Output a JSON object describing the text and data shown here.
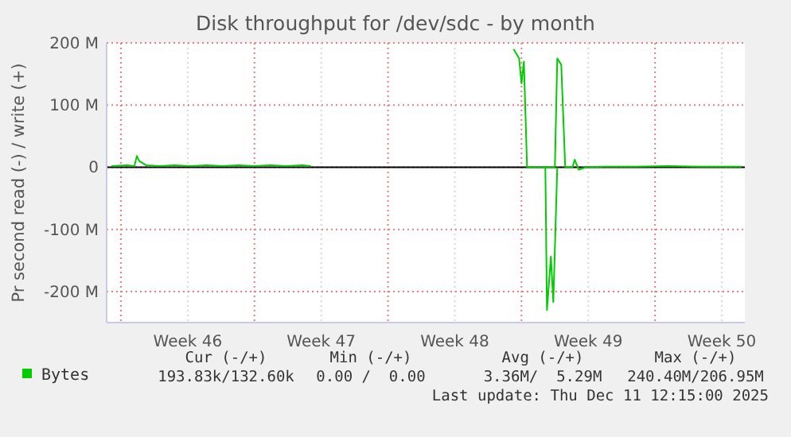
{
  "chart_data": {
    "type": "line",
    "title": "Disk throughput for /dev/sdc - by month",
    "ylabel": "Pr second read (-) / write (+)",
    "xlim": [
      "2025-11-09T06:00",
      "2025-12-12T17:00"
    ],
    "ylim": [
      -250,
      200
    ],
    "xticks": [
      {
        "value": "2025-11-10T00:00",
        "label": null
      },
      {
        "value": "2025-11-13T12:00",
        "label": "Week 46"
      },
      {
        "value": "2025-11-17T00:00",
        "label": null
      },
      {
        "value": "2025-11-20T12:00",
        "label": "Week 47"
      },
      {
        "value": "2025-11-24T00:00",
        "label": null
      },
      {
        "value": "2025-11-27T12:00",
        "label": "Week 48"
      },
      {
        "value": "2025-12-01T00:00",
        "label": null
      },
      {
        "value": "2025-12-04T12:00",
        "label": "Week 49"
      },
      {
        "value": "2025-12-08T00:00",
        "label": null
      },
      {
        "value": "2025-12-11T12:00",
        "label": "Week 50"
      }
    ],
    "yticks": [
      {
        "value": -200,
        "label": "-200 M"
      },
      {
        "value": -100,
        "label": "-100 M"
      },
      0,
      {
        "value": 100,
        "label": "100 M"
      },
      {
        "value": 200,
        "label": "200 M"
      }
    ],
    "grid": true,
    "legend": "bottom left",
    "line_style": "solid",
    "marker": "none",
    "series": [
      {
        "name": "Bytes",
        "color": "#00cc00",
        "x": [
          "2025-11-09T12:00",
          "2025-11-10T08:00",
          "2025-11-10T17:00",
          "2025-11-10T20:00",
          "2025-11-10T23:00",
          "2025-11-11T08:00",
          "2025-11-12T01:00",
          "2025-11-12T19:00",
          "2025-11-13T15:00",
          "2025-11-14T12:00",
          "2025-11-15T08:00",
          "2025-11-16T04:00",
          "2025-11-17T00:00",
          "2025-11-17T20:00",
          "2025-11-18T16:00",
          "2025-11-19T12:00",
          "2025-11-19T23:00",
          "2025-11-20T04:00",
          "2025-11-30T14:00",
          "2025-11-30T21:00",
          "2025-12-01T00:00",
          "2025-12-01T03:00",
          "2025-12-01T07:00",
          "2025-12-01T13:00",
          "2025-12-02T06:00",
          "2025-12-02T18:00",
          "2025-12-02T21:00",
          "2025-12-03T02:00",
          "2025-12-03T07:00",
          "2025-12-03T16:00",
          "2025-12-03T19:00",
          "2025-12-04T00:00",
          "2025-12-04T09:00",
          "2025-12-05T08:00",
          "2025-12-07T00:00",
          "2025-12-08T17:00",
          "2025-12-10T07:00",
          "2025-12-11T14:00",
          "2025-12-12T13:00"
        ],
        "values": [
          2,
          3,
          2,
          18,
          10,
          3,
          2,
          3,
          2,
          3,
          2,
          3,
          2,
          3,
          2,
          3,
          2,
          null,
          190,
          175,
          135,
          170,
          0,
          0,
          0,
          0,
          175,
          165,
          0,
          0,
          12,
          -4,
          0,
          1,
          1,
          2,
          1,
          1,
          1
        ]
      },
      {
        "color": "#00cc00",
        "x": [
          "2025-12-02T06:00",
          "2025-12-02T08:00",
          "2025-12-02T13:00",
          "2025-12-02T16:00",
          "2025-12-02T21:00"
        ],
        "values": [
          0,
          -230,
          -144,
          -217,
          0
        ]
      }
    ],
    "annotations": [
      "Cur (-/+)",
      "193.83k/132.60k",
      "Min (-/+)",
      "0.00 /  0.00",
      "Avg (-/+)",
      "3.36M/  5.29M",
      "Max (-/+)",
      "240.40M/206.95M",
      "Last update: Thu Dec 11 12:15:00 2025"
    ]
  }
}
